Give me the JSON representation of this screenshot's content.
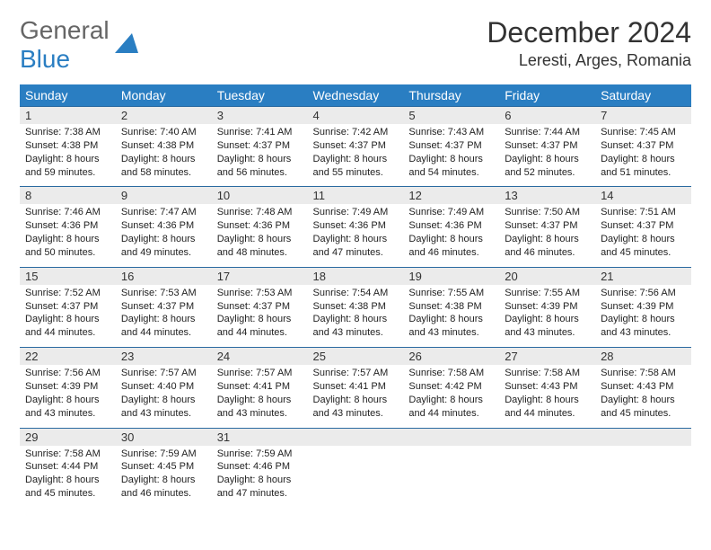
{
  "logo": {
    "line1": "General",
    "line2": "Blue"
  },
  "title": "December 2024",
  "location": "Leresti, Arges, Romania",
  "colors": {
    "header_bg": "#2a7ec2",
    "header_text": "#ffffff",
    "daynum_bg": "#ebebeb",
    "rule": "#2a6aa0",
    "body_text": "#222222",
    "page_bg": "#ffffff"
  },
  "dow": [
    "Sunday",
    "Monday",
    "Tuesday",
    "Wednesday",
    "Thursday",
    "Friday",
    "Saturday"
  ],
  "days": [
    {
      "n": "1",
      "sr": "7:38 AM",
      "ss": "4:38 PM",
      "dl": "8 hours and 59 minutes."
    },
    {
      "n": "2",
      "sr": "7:40 AM",
      "ss": "4:38 PM",
      "dl": "8 hours and 58 minutes."
    },
    {
      "n": "3",
      "sr": "7:41 AM",
      "ss": "4:37 PM",
      "dl": "8 hours and 56 minutes."
    },
    {
      "n": "4",
      "sr": "7:42 AM",
      "ss": "4:37 PM",
      "dl": "8 hours and 55 minutes."
    },
    {
      "n": "5",
      "sr": "7:43 AM",
      "ss": "4:37 PM",
      "dl": "8 hours and 54 minutes."
    },
    {
      "n": "6",
      "sr": "7:44 AM",
      "ss": "4:37 PM",
      "dl": "8 hours and 52 minutes."
    },
    {
      "n": "7",
      "sr": "7:45 AM",
      "ss": "4:37 PM",
      "dl": "8 hours and 51 minutes."
    },
    {
      "n": "8",
      "sr": "7:46 AM",
      "ss": "4:36 PM",
      "dl": "8 hours and 50 minutes."
    },
    {
      "n": "9",
      "sr": "7:47 AM",
      "ss": "4:36 PM",
      "dl": "8 hours and 49 minutes."
    },
    {
      "n": "10",
      "sr": "7:48 AM",
      "ss": "4:36 PM",
      "dl": "8 hours and 48 minutes."
    },
    {
      "n": "11",
      "sr": "7:49 AM",
      "ss": "4:36 PM",
      "dl": "8 hours and 47 minutes."
    },
    {
      "n": "12",
      "sr": "7:49 AM",
      "ss": "4:36 PM",
      "dl": "8 hours and 46 minutes."
    },
    {
      "n": "13",
      "sr": "7:50 AM",
      "ss": "4:37 PM",
      "dl": "8 hours and 46 minutes."
    },
    {
      "n": "14",
      "sr": "7:51 AM",
      "ss": "4:37 PM",
      "dl": "8 hours and 45 minutes."
    },
    {
      "n": "15",
      "sr": "7:52 AM",
      "ss": "4:37 PM",
      "dl": "8 hours and 44 minutes."
    },
    {
      "n": "16",
      "sr": "7:53 AM",
      "ss": "4:37 PM",
      "dl": "8 hours and 44 minutes."
    },
    {
      "n": "17",
      "sr": "7:53 AM",
      "ss": "4:37 PM",
      "dl": "8 hours and 44 minutes."
    },
    {
      "n": "18",
      "sr": "7:54 AM",
      "ss": "4:38 PM",
      "dl": "8 hours and 43 minutes."
    },
    {
      "n": "19",
      "sr": "7:55 AM",
      "ss": "4:38 PM",
      "dl": "8 hours and 43 minutes."
    },
    {
      "n": "20",
      "sr": "7:55 AM",
      "ss": "4:39 PM",
      "dl": "8 hours and 43 minutes."
    },
    {
      "n": "21",
      "sr": "7:56 AM",
      "ss": "4:39 PM",
      "dl": "8 hours and 43 minutes."
    },
    {
      "n": "22",
      "sr": "7:56 AM",
      "ss": "4:39 PM",
      "dl": "8 hours and 43 minutes."
    },
    {
      "n": "23",
      "sr": "7:57 AM",
      "ss": "4:40 PM",
      "dl": "8 hours and 43 minutes."
    },
    {
      "n": "24",
      "sr": "7:57 AM",
      "ss": "4:41 PM",
      "dl": "8 hours and 43 minutes."
    },
    {
      "n": "25",
      "sr": "7:57 AM",
      "ss": "4:41 PM",
      "dl": "8 hours and 43 minutes."
    },
    {
      "n": "26",
      "sr": "7:58 AM",
      "ss": "4:42 PM",
      "dl": "8 hours and 44 minutes."
    },
    {
      "n": "27",
      "sr": "7:58 AM",
      "ss": "4:43 PM",
      "dl": "8 hours and 44 minutes."
    },
    {
      "n": "28",
      "sr": "7:58 AM",
      "ss": "4:43 PM",
      "dl": "8 hours and 45 minutes."
    },
    {
      "n": "29",
      "sr": "7:58 AM",
      "ss": "4:44 PM",
      "dl": "8 hours and 45 minutes."
    },
    {
      "n": "30",
      "sr": "7:59 AM",
      "ss": "4:45 PM",
      "dl": "8 hours and 46 minutes."
    },
    {
      "n": "31",
      "sr": "7:59 AM",
      "ss": "4:46 PM",
      "dl": "8 hours and 47 minutes."
    }
  ],
  "labels": {
    "sunrise": "Sunrise:",
    "sunset": "Sunset:",
    "daylight": "Daylight:"
  },
  "layout": {
    "first_day_offset": 0,
    "trailing_blanks": 4
  }
}
